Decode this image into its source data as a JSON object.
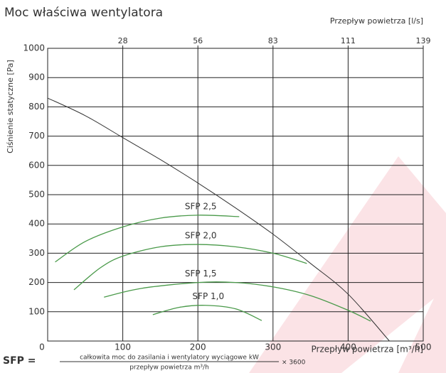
{
  "chart_data": {
    "type": "line",
    "title": "Moc właściwa wentylatora",
    "ylabel": "Ciśnienie statyczne [Pa]",
    "xlabel": "Przepływ powietrza [m³/h]",
    "x2label": "Przepływ powietrza [l/s]",
    "xlim": [
      0,
      500
    ],
    "xticks": [
      0,
      100,
      200,
      300,
      400,
      500
    ],
    "x2ticks": [
      {
        "value": 100,
        "label": "28"
      },
      {
        "value": 200,
        "label": "56"
      },
      {
        "value": 300,
        "label": "83"
      },
      {
        "value": 400,
        "label": "111"
      },
      {
        "value": 500,
        "label": "139"
      }
    ],
    "ylim": [
      0,
      1000
    ],
    "yticks": [
      100,
      200,
      300,
      400,
      500,
      600,
      700,
      800,
      900,
      1000
    ],
    "grid": true,
    "series": [
      {
        "color": "#333333",
        "x": [
          0,
          50,
          100,
          150,
          200,
          250,
          300,
          350,
          400,
          455
        ],
        "values": [
          830,
          770,
          695,
          620,
          540,
          455,
          365,
          265,
          160,
          0
        ]
      },
      {
        "name": "SFP 2,5",
        "color": "#4a9a4a",
        "x": [
          10,
          50,
          100,
          150,
          200,
          255
        ],
        "values": [
          270,
          340,
          390,
          420,
          430,
          425
        ]
      },
      {
        "name": "SFP 2,0",
        "color": "#4a9a4a",
        "x": [
          35,
          70,
          100,
          150,
          200,
          250,
          300,
          345
        ],
        "values": [
          175,
          250,
          290,
          322,
          330,
          322,
          300,
          265
        ]
      },
      {
        "name": "SFP 1,5",
        "color": "#4a9a4a",
        "x": [
          75,
          125,
          200,
          250,
          300,
          350,
          400,
          430
        ],
        "values": [
          150,
          180,
          200,
          200,
          185,
          155,
          105,
          68
        ]
      },
      {
        "name": "SFP 1,0",
        "color": "#4a9a4a",
        "x": [
          140,
          175,
          210,
          250,
          285
        ],
        "values": [
          90,
          115,
          122,
          110,
          70
        ]
      }
    ],
    "formula": {
      "lhs": "SFP =",
      "numerator": "całkowita moc do zasilania i wentylatory wyciągowe kW",
      "denominator": "przepływ powietrza m³/h",
      "factor": "× 3600"
    }
  }
}
